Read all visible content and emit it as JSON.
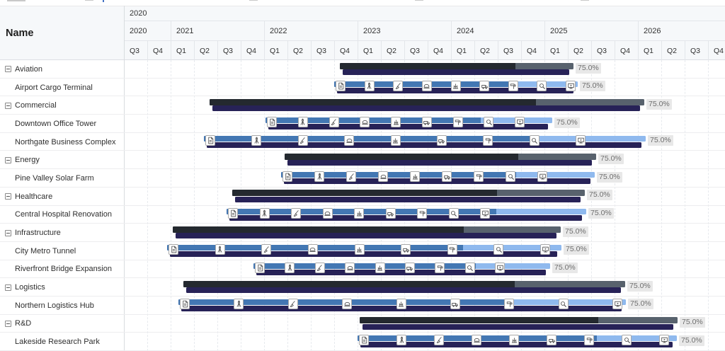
{
  "table": {
    "name_header": "Name"
  },
  "timeline": {
    "top_tier_label": "2020",
    "years": [
      {
        "label": "2020",
        "quarters": [
          "Q3",
          "Q4"
        ]
      },
      {
        "label": "2021",
        "quarters": [
          "Q1",
          "Q2",
          "Q3",
          "Q4"
        ]
      },
      {
        "label": "2022",
        "quarters": [
          "Q1",
          "Q2",
          "Q3",
          "Q4"
        ]
      },
      {
        "label": "2023",
        "quarters": [
          "Q1",
          "Q2",
          "Q3",
          "Q4"
        ]
      },
      {
        "label": "2024",
        "quarters": [
          "Q1",
          "Q2",
          "Q3",
          "Q4"
        ]
      },
      {
        "label": "2025",
        "quarters": [
          "Q1",
          "Q2",
          "Q3",
          "Q4"
        ]
      },
      {
        "label": "2026",
        "quarters": [
          "Q1",
          "Q2",
          "Q3",
          "Q4"
        ]
      }
    ]
  },
  "colors": {
    "parent_progress": "#24292f",
    "parent_remaining": "#58626d",
    "child_progress": "#4377b3",
    "child_remaining": "#8fb9ee",
    "baseline": "#272257",
    "chip_bg": "#e8e8e8",
    "chip_text": "#6e6e6e"
  },
  "phase_icons": [
    "document-icon",
    "survey-tripod-icon",
    "excavation-icon",
    "paver-machine-icon",
    "structure-frame-icon",
    "truck-icon",
    "paint-roller-icon",
    "inspection-magnifier-icon",
    "handover-monitor-icon"
  ],
  "rows": [
    {
      "label": "Aviation",
      "type": "parent",
      "start": 480,
      "end": 810,
      "progress": 0.75,
      "progress_label": "75.0%"
    },
    {
      "label": "Airport Cargo Terminal",
      "type": "child",
      "start": 472,
      "end": 816,
      "icon_end": 806,
      "progress": 0.75,
      "progress_label": "75.0%"
    },
    {
      "label": "Commercial",
      "type": "parent",
      "start": 296,
      "end": 910,
      "progress": 0.75,
      "progress_label": "75.0%"
    },
    {
      "label": "Downtown Office Tower",
      "type": "child",
      "start": 375,
      "end": 780,
      "icon_end": 734,
      "progress": 0.75,
      "progress_label": "75.0%"
    },
    {
      "label": "Northgate Business Complex",
      "type": "child",
      "start": 288,
      "end": 912,
      "icon_end": 820,
      "progress": 0.75,
      "progress_label": "75.0%"
    },
    {
      "label": "Energy",
      "type": "parent",
      "start": 402,
      "end": 842,
      "progress": 0.75,
      "progress_label": "75.0%"
    },
    {
      "label": "Pine Valley Solar Farm",
      "type": "child",
      "start": 397,
      "end": 840,
      "icon_end": 766,
      "progress": 0.75,
      "progress_label": "75.0%"
    },
    {
      "label": "Healthcare",
      "type": "parent",
      "start": 328,
      "end": 826,
      "progress": 0.75,
      "progress_label": "75.0%"
    },
    {
      "label": "Central Hospital Renovation",
      "type": "child",
      "start": 320,
      "end": 828,
      "icon_end": 685,
      "progress": 0.75,
      "progress_label": "75.0%"
    },
    {
      "label": "Infrastructure",
      "type": "parent",
      "start": 244,
      "end": 792,
      "progress": 0.75,
      "progress_label": "75.0%"
    },
    {
      "label": "City Metro Tunnel",
      "type": "child",
      "start": 236,
      "end": 793,
      "icon_end": 770,
      "progress": 0.75,
      "progress_label": "75.0%"
    },
    {
      "label": "Riverfront Bridge Expansion",
      "type": "child",
      "start": 358,
      "end": 777,
      "icon_end": 706,
      "progress": 0.75,
      "progress_label": "75.0%"
    },
    {
      "label": "Logistics",
      "type": "parent",
      "start": 259,
      "end": 883,
      "progress": 0.75,
      "progress_label": "75.0%"
    },
    {
      "label": "Northern Logistics Hub",
      "type": "child",
      "start": 252,
      "end": 884,
      "icon_end": 872,
      "progress": 0.75,
      "progress_label": "75.0%"
    },
    {
      "label": "R&D",
      "type": "parent",
      "start": 508,
      "end": 957,
      "progress": 0.75,
      "progress_label": "75.0%"
    },
    {
      "label": "Lakeside Research Park",
      "type": "child",
      "start": 505,
      "end": 956,
      "icon_end": 938,
      "progress": 0.75,
      "progress_label": "75.0%"
    }
  ]
}
